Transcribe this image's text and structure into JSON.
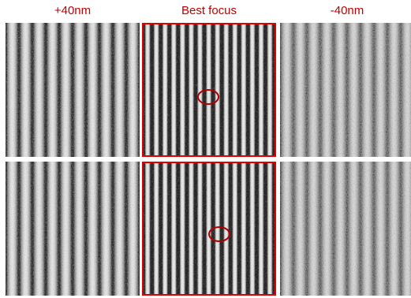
{
  "labels": {
    "col1": "+40nm",
    "col2": "Best focus",
    "col3": "-40nm"
  },
  "colors": {
    "label_red": "#c00000",
    "highlight_border": "#e00000",
    "marker": "#b00000",
    "bright_line": "#ebebeb",
    "dark_space": "#2a2a2a"
  },
  "panels": [
    {
      "row": 1,
      "column": "+40nm",
      "highlighted": false,
      "lines": 10,
      "blur": "moderate"
    },
    {
      "row": 1,
      "column": "Best focus",
      "highlighted": true,
      "lines": 15,
      "blur": "sharp",
      "marker": "circle"
    },
    {
      "row": 1,
      "column": "-40nm",
      "highlighted": false,
      "lines": 10,
      "blur": "strong"
    },
    {
      "row": 2,
      "column": "+40nm",
      "highlighted": false,
      "lines": 10,
      "blur": "moderate"
    },
    {
      "row": 2,
      "column": "Best focus",
      "highlighted": true,
      "lines": 15,
      "blur": "sharp",
      "marker": "circle"
    },
    {
      "row": 2,
      "column": "-40nm",
      "highlighted": false,
      "lines": 10,
      "blur": "strong"
    }
  ]
}
